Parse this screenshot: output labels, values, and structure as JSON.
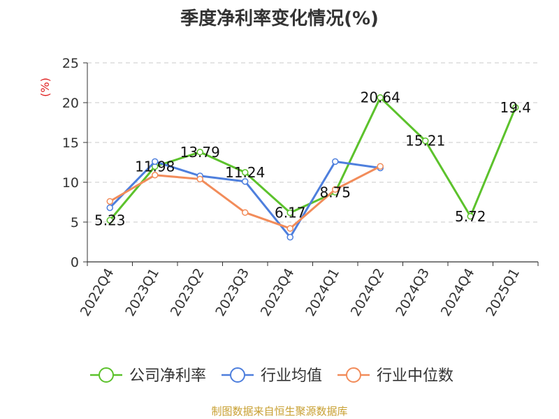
{
  "title": "季度净利率变化情况(%)",
  "source": "制图数据来自恒生聚源数据库",
  "chart_data": {
    "type": "line",
    "title": "季度净利率变化情况(%)",
    "ylabel": "(%)",
    "ylabel_color": "#e02020",
    "ylim": [
      0,
      25
    ],
    "yticks": [
      0,
      5,
      10,
      15,
      20,
      25
    ],
    "grid": true,
    "legend_position": "bottom",
    "categories": [
      "2022Q4",
      "2023Q1",
      "2023Q2",
      "2023Q3",
      "2023Q4",
      "2024Q1",
      "2024Q2",
      "2024Q3",
      "2024Q4",
      "2025Q1"
    ],
    "series": [
      {
        "name": "公司净利率",
        "color": "#5cc22c",
        "values": [
          5.23,
          11.98,
          13.79,
          11.24,
          6.17,
          8.75,
          20.64,
          15.21,
          5.72,
          19.4
        ],
        "labels": [
          "5.23",
          "11.98",
          "13.79",
          "11.24",
          "6.17",
          "8.75",
          "20.64",
          "15.21",
          "5.72",
          "19.4"
        ]
      },
      {
        "name": "行业均值",
        "color": "#4e7fdd",
        "values": [
          6.8,
          12.6,
          10.8,
          10.1,
          3.1,
          12.6,
          11.8,
          null,
          null,
          null
        ]
      },
      {
        "name": "行业中位数",
        "color": "#f28c5a",
        "values": [
          7.6,
          10.9,
          10.4,
          6.2,
          4.2,
          9.1,
          12.0,
          null,
          null,
          null
        ]
      }
    ]
  }
}
